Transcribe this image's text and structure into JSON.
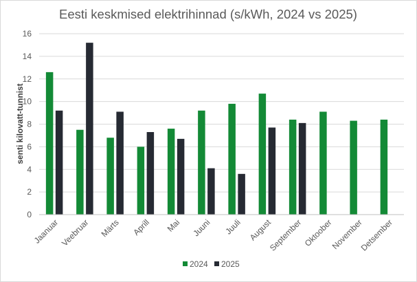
{
  "chart_data": {
    "type": "bar",
    "title": "Eesti keskmised elektrihinnad (s/kWh, 2024 vs 2025)",
    "xlabel": "",
    "ylabel": "senti kilovatt-tunnist",
    "ylim": [
      0,
      16
    ],
    "yticks": [
      0,
      2,
      4,
      6,
      8,
      10,
      12,
      14,
      16
    ],
    "grid": true,
    "legend_position": "bottom",
    "categories": [
      "Jaanuar",
      "Veebruar",
      "Märts",
      "Aprill",
      "Mai",
      "Juuni",
      "Juuli",
      "August",
      "September",
      "Oktoober",
      "November",
      "Detsember"
    ],
    "series": [
      {
        "name": "2024",
        "color": "#138a36",
        "values": [
          12.6,
          7.5,
          6.8,
          6.0,
          7.6,
          9.2,
          9.8,
          10.7,
          8.4,
          9.1,
          8.3,
          8.4
        ]
      },
      {
        "name": "2025",
        "color": "#262a33",
        "values": [
          9.2,
          15.2,
          9.1,
          7.3,
          6.7,
          4.1,
          3.6,
          7.7,
          8.1,
          null,
          null,
          null
        ]
      }
    ]
  }
}
